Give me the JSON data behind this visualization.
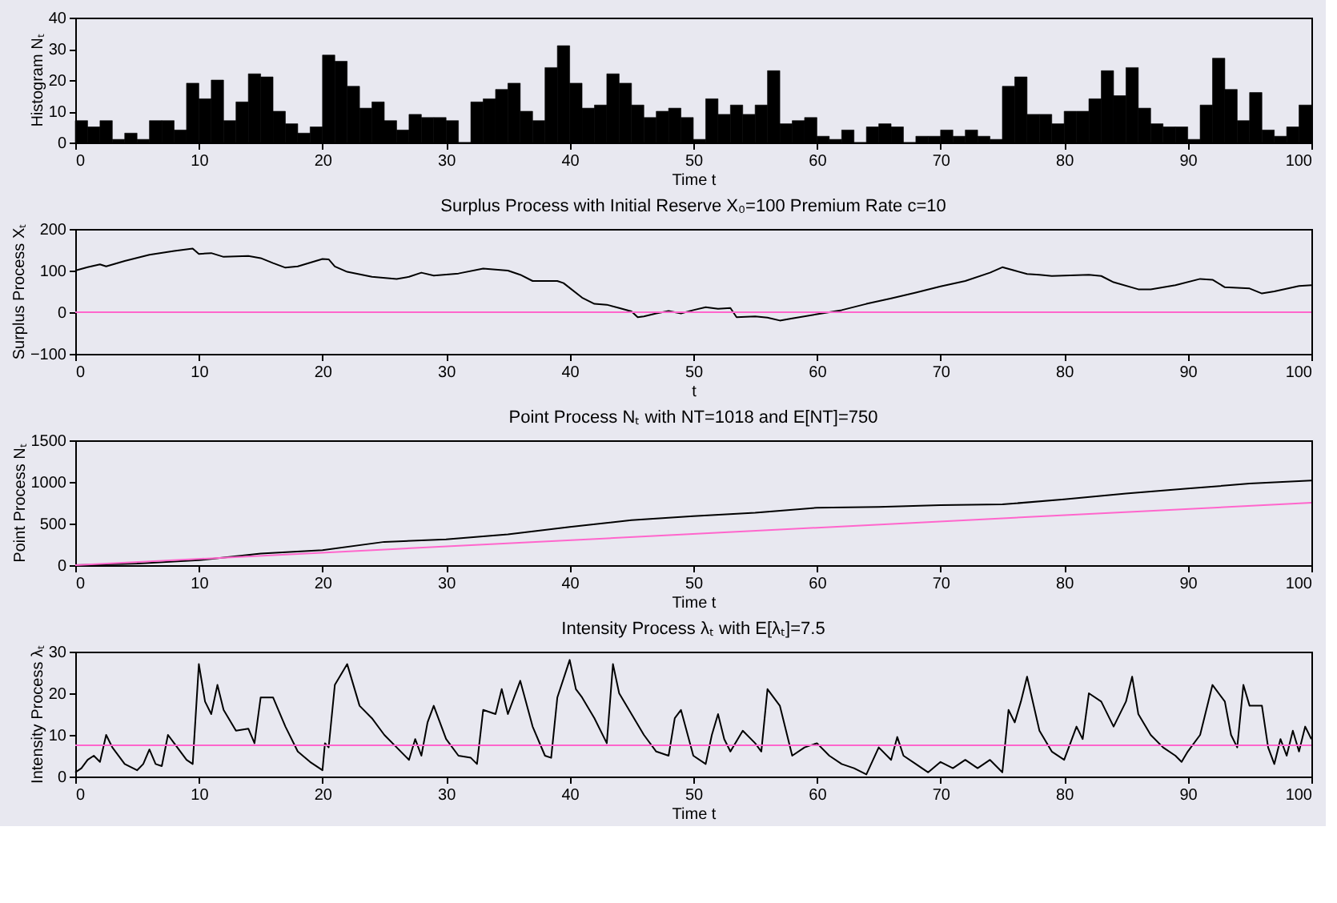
{
  "chart_data": [
    {
      "type": "histogram",
      "ylabel": "Histogram Nₜ",
      "xlabel": "Time t",
      "color": "#000000",
      "bins": [
        0,
        1,
        2,
        3,
        4,
        5,
        6,
        7,
        8,
        9,
        10,
        11,
        12,
        13,
        14,
        15,
        16,
        17,
        18,
        19,
        20,
        21,
        22,
        23,
        24,
        25,
        26,
        27,
        28,
        29,
        30,
        31,
        32,
        33,
        34,
        35,
        36,
        37,
        38,
        39,
        40,
        41,
        42,
        43,
        44,
        45,
        46,
        47,
        48,
        49,
        50,
        51,
        52,
        53,
        54,
        55,
        56,
        57,
        58,
        59,
        60,
        61,
        62,
        63,
        64,
        65,
        66,
        67,
        68,
        69,
        70,
        71,
        72,
        73,
        74,
        75,
        76,
        77,
        78,
        79,
        80,
        81,
        82,
        83,
        84,
        85,
        86,
        87,
        88,
        89,
        90,
        91,
        92,
        93,
        94,
        95,
        96,
        97,
        98,
        99,
        100
      ],
      "values": [
        7,
        5,
        7,
        1,
        3,
        1,
        7,
        7,
        4,
        19,
        14,
        20,
        7,
        13,
        22,
        21,
        10,
        6,
        3,
        5,
        28,
        26,
        18,
        11,
        13,
        7,
        4,
        9,
        8,
        8,
        7,
        0,
        13,
        14,
        17,
        19,
        10,
        7,
        24,
        31,
        19,
        11,
        12,
        22,
        19,
        12,
        8,
        10,
        11,
        8,
        1,
        14,
        9,
        12,
        9,
        12,
        23,
        6,
        7,
        8,
        2,
        1,
        4,
        0,
        5,
        6,
        5,
        0,
        2,
        2,
        4,
        2,
        4,
        2,
        1,
        18,
        21,
        9,
        9,
        6,
        10,
        10,
        14,
        23,
        15,
        24,
        11,
        6,
        5,
        5,
        1,
        12,
        27,
        17,
        7,
        16,
        4,
        2,
        5,
        12
      ],
      "xlim": [
        0,
        100
      ],
      "xticks": [
        0,
        10,
        20,
        30,
        40,
        50,
        60,
        70,
        80,
        90,
        100
      ],
      "ylim": [
        0,
        40
      ],
      "yticks": [
        0,
        10,
        20,
        30,
        40
      ],
      "grid": false
    },
    {
      "type": "line",
      "title": "Surplus Process with Initial Reserve X₀=100 Premium Rate c=10",
      "ylabel": "Surplus Process Xₜ",
      "xlabel": "t",
      "series": [
        {
          "color": "#000000",
          "x": [
            0,
            1,
            2,
            2.5,
            4,
            6,
            8,
            9.5,
            10,
            11,
            12,
            14,
            15,
            16,
            17,
            18,
            20,
            20.5,
            21,
            22,
            24,
            26,
            27,
            28,
            29,
            31,
            33,
            35,
            36,
            37,
            39,
            39.5,
            41,
            42,
            43,
            44,
            45,
            45.5,
            46,
            47,
            48,
            49,
            50,
            51,
            52,
            53,
            53.5,
            55,
            56,
            57,
            58,
            60,
            62,
            64,
            66,
            68,
            70,
            72,
            74,
            75,
            76,
            77,
            78,
            79,
            80,
            82,
            83,
            84,
            86,
            87,
            89,
            91,
            92,
            93,
            95,
            96,
            97,
            99,
            100
          ],
          "values": [
            100,
            108,
            115,
            110,
            123,
            138,
            147,
            153,
            140,
            142,
            133,
            135,
            130,
            118,
            107,
            110,
            128,
            127,
            110,
            97,
            85,
            80,
            85,
            95,
            88,
            93,
            105,
            100,
            90,
            75,
            75,
            70,
            35,
            20,
            18,
            10,
            2,
            -12,
            -10,
            -3,
            3,
            -3,
            5,
            12,
            8,
            10,
            -12,
            -10,
            -13,
            -20,
            -15,
            -5,
            5,
            20,
            33,
            47,
            62,
            75,
            95,
            108,
            100,
            92,
            90,
            87,
            88,
            90,
            87,
            72,
            55,
            55,
            65,
            80,
            78,
            60,
            57,
            45,
            50,
            63,
            65
          ]
        }
      ],
      "ref_lines": [
        {
          "axis": "y",
          "value": 0,
          "color": "#ff66cc"
        }
      ],
      "xlim": [
        0,
        100
      ],
      "xticks": [
        0,
        10,
        20,
        30,
        40,
        50,
        60,
        70,
        80,
        90,
        100
      ],
      "ylim": [
        -100,
        200
      ],
      "yticks": [
        -100,
        0,
        100,
        200
      ],
      "grid": false
    },
    {
      "type": "line",
      "title": "Point Process Nₜ with NT=1018 and E[NT]=750",
      "ylabel": "Point Process Nₜ",
      "xlabel": "Time t",
      "series": [
        {
          "color": "#000000",
          "x": [
            0,
            5,
            10,
            15,
            20,
            25,
            30,
            35,
            40,
            45,
            50,
            55,
            60,
            65,
            70,
            75,
            80,
            85,
            90,
            95,
            100
          ],
          "values": [
            0,
            20,
            60,
            140,
            180,
            280,
            310,
            370,
            460,
            540,
            590,
            630,
            690,
            700,
            720,
            730,
            790,
            860,
            920,
            980,
            1018
          ]
        },
        {
          "color": "#ff66cc",
          "x": [
            0,
            100
          ],
          "values": [
            0,
            750
          ]
        }
      ],
      "xlim": [
        0,
        100
      ],
      "xticks": [
        0,
        10,
        20,
        30,
        40,
        50,
        60,
        70,
        80,
        90,
        100
      ],
      "ylim": [
        0,
        1500
      ],
      "yticks": [
        0,
        500,
        1000,
        1500
      ],
      "grid": false
    },
    {
      "type": "line",
      "title": "Intensity Process λₜ with E[λₜ]=7.5",
      "ylabel": "Intensity Process λₜ",
      "xlabel": "Time t",
      "series": [
        {
          "color": "#000000",
          "x": [
            0,
            0.5,
            1,
            1.5,
            2,
            2.5,
            3,
            4,
            5,
            5.5,
            6,
            6.5,
            7,
            7.5,
            8,
            9,
            9.5,
            10,
            10.5,
            11,
            11.5,
            12,
            13,
            14,
            14.5,
            15,
            16,
            17,
            18,
            19,
            20,
            20.2,
            20.5,
            21,
            22,
            23,
            24,
            25,
            26,
            27,
            27.5,
            28,
            28.5,
            29,
            30,
            31,
            32,
            32.5,
            33,
            34,
            34.5,
            35,
            36,
            37,
            38,
            38.5,
            39,
            40,
            40.5,
            41,
            42,
            43,
            43.5,
            44,
            45,
            46,
            47,
            48,
            48.5,
            49,
            50,
            51,
            51.5,
            52,
            52.5,
            53,
            54,
            55,
            55.5,
            56,
            57,
            58,
            59,
            60,
            61,
            62,
            63,
            64,
            65,
            66,
            66.5,
            67,
            68,
            69,
            70,
            71,
            72,
            73,
            74,
            75,
            75.5,
            76,
            76.5,
            77,
            78,
            79,
            80,
            81,
            81.5,
            82,
            83,
            84,
            85,
            85.5,
            86,
            87,
            88,
            89,
            89.5,
            90,
            91,
            92,
            93,
            93.5,
            94,
            94.5,
            95,
            96,
            96.5,
            97,
            97.5,
            98,
            98.5,
            99,
            99.5,
            100
          ],
          "values": [
            1,
            2,
            4,
            5,
            3.5,
            10,
            7,
            3,
            1.5,
            3,
            6.5,
            3,
            2.5,
            10,
            8,
            4,
            3,
            27,
            18,
            15,
            22,
            16,
            11,
            11.5,
            8,
            19,
            19,
            12,
            6,
            3.5,
            1.5,
            8,
            7,
            22,
            27,
            17,
            14,
            10,
            7,
            4,
            9,
            5,
            13,
            17,
            9,
            5,
            4.5,
            3,
            16,
            15,
            21,
            15,
            23,
            12,
            5,
            4.5,
            19,
            28,
            21,
            19,
            14,
            8,
            27,
            20,
            15,
            10,
            6,
            5,
            14,
            16,
            5,
            3,
            10,
            15,
            9,
            6,
            11,
            8,
            6,
            21,
            17,
            5,
            7,
            8,
            5,
            3,
            2,
            0.5,
            7,
            4,
            9.5,
            5,
            3,
            1,
            3.5,
            2,
            4,
            2,
            4,
            1,
            16,
            13,
            18,
            24,
            11,
            6,
            4,
            12,
            9,
            20,
            18,
            12,
            18,
            24,
            15,
            10,
            7,
            5,
            3.5,
            6,
            10,
            22,
            18,
            10,
            7,
            22,
            17,
            17,
            7,
            3,
            9,
            5,
            11,
            6,
            12,
            9
          ]
        }
      ],
      "ref_lines": [
        {
          "axis": "y",
          "value": 7.5,
          "color": "#ff66cc"
        }
      ],
      "xlim": [
        0,
        100
      ],
      "xticks": [
        0,
        10,
        20,
        30,
        40,
        50,
        60,
        70,
        80,
        90,
        100
      ],
      "ylim": [
        0,
        30
      ],
      "yticks": [
        0,
        10,
        20,
        30
      ],
      "grid": false
    }
  ]
}
